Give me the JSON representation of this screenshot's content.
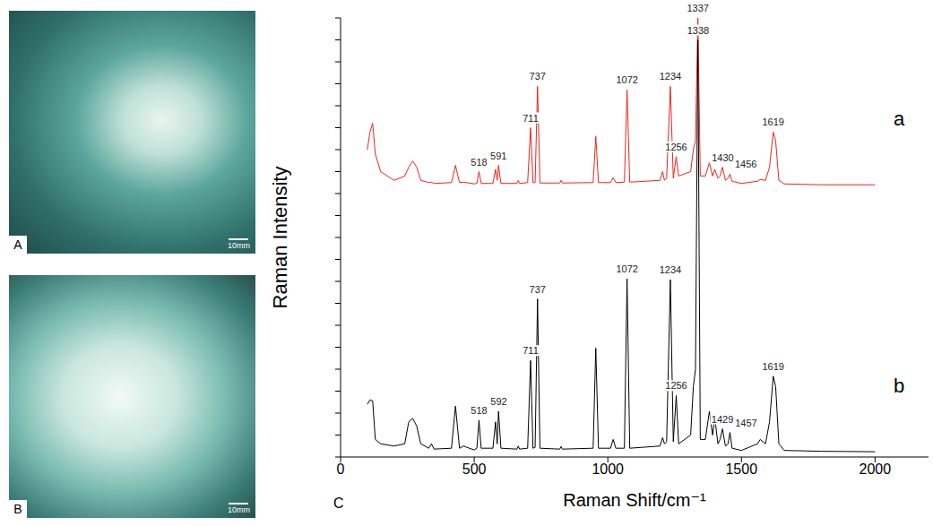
{
  "chart_data": {
    "type": "line",
    "xlabel": "Raman Shift/cm⁻¹",
    "ylabel": "Raman Intensity",
    "xlim": [
      0,
      2200
    ],
    "xticks": [
      0,
      500,
      1000,
      1500,
      2000
    ],
    "ylim": [
      0,
      100
    ],
    "yticks": [
      0,
      5,
      10,
      15,
      20,
      25,
      30,
      35,
      40,
      45,
      50,
      55,
      60,
      65,
      70,
      75,
      80,
      85,
      90,
      95,
      100
    ],
    "tick_labels": "x",
    "grid": false,
    "x": [
      100,
      110,
      120,
      130,
      150,
      200,
      240,
      255,
      270,
      285,
      300,
      330,
      340,
      350,
      415,
      430,
      445,
      460,
      500,
      510,
      518,
      526,
      570,
      580,
      586,
      591,
      600,
      660,
      665,
      670,
      700,
      711,
      720,
      728,
      737,
      746,
      820,
      825,
      830,
      945,
      955,
      965,
      1010,
      1020,
      1030,
      1062,
      1072,
      1082,
      1195,
      1205,
      1212,
      1220,
      1234,
      1245,
      1256,
      1265,
      1310,
      1320,
      1328,
      1337,
      1346,
      1365,
      1380,
      1392,
      1400,
      1412,
      1420,
      1429,
      1440,
      1450,
      1457,
      1465,
      1500,
      1560,
      1570,
      1590,
      1605,
      1619,
      1628,
      1640,
      1660,
      1800,
      2000
    ],
    "series": [
      {
        "name": "a",
        "color": "#e8261c",
        "values": [
          70,
          74,
          76,
          69,
          65,
          63,
          64,
          66,
          67.4,
          66,
          63,
          62.5,
          62.6,
          62.3,
          62.5,
          66.4,
          62.5,
          62.6,
          62.2,
          62.3,
          65,
          62.3,
          62.3,
          65.5,
          63,
          66.4,
          62.3,
          62.3,
          63,
          62.3,
          62.5,
          75,
          62.5,
          62.5,
          84.4,
          62.4,
          62.4,
          63,
          62.4,
          62.5,
          73,
          62.5,
          62.5,
          63.6,
          62.5,
          62.6,
          83.6,
          62.6,
          63,
          65,
          63,
          63.5,
          84.4,
          63.5,
          68.4,
          64,
          65,
          70,
          72,
          100,
          64,
          64,
          67,
          64,
          65.5,
          63.5,
          64,
          66,
          63,
          63.5,
          64.4,
          62.8,
          62.3,
          62.8,
          63.2,
          63,
          66,
          74,
          72,
          63,
          62.2,
          62,
          62
        ],
        "peak_labels": [
          518,
          591,
          711,
          737,
          1072,
          1234,
          1256,
          1337,
          1430,
          1456,
          1619
        ]
      },
      {
        "name": "b",
        "color": "#000000",
        "values": [
          12,
          13,
          12.8,
          4,
          3,
          2.5,
          3,
          8,
          8.8,
          7,
          3,
          2,
          3,
          1.8,
          2,
          11.6,
          2,
          2.5,
          1.6,
          2,
          8.4,
          2,
          2,
          8,
          3,
          10.4,
          2,
          1.8,
          2.5,
          1.8,
          2,
          22,
          2,
          2.2,
          36,
          2,
          1.8,
          2.4,
          1.8,
          2,
          24.8,
          2,
          2,
          4,
          2,
          2,
          40.6,
          2,
          2.5,
          4.4,
          3,
          3.5,
          40.4,
          3.5,
          14,
          3,
          5,
          16,
          20,
          95,
          4,
          4,
          10.4,
          5,
          9,
          3,
          4,
          6.4,
          2.5,
          3,
          5.6,
          2,
          1.5,
          3,
          4,
          3,
          8,
          18.4,
          16,
          3,
          1.5,
          1.3,
          1.2
        ],
        "peak_labels": [
          518,
          592,
          711,
          737,
          1072,
          1234,
          1256,
          1338,
          1429,
          1457,
          1619
        ]
      }
    ]
  },
  "images": [
    {
      "label": "A",
      "scale_bar": "10mm"
    },
    {
      "label": "B",
      "scale_bar": "10mm"
    }
  ],
  "panel_label": "C"
}
